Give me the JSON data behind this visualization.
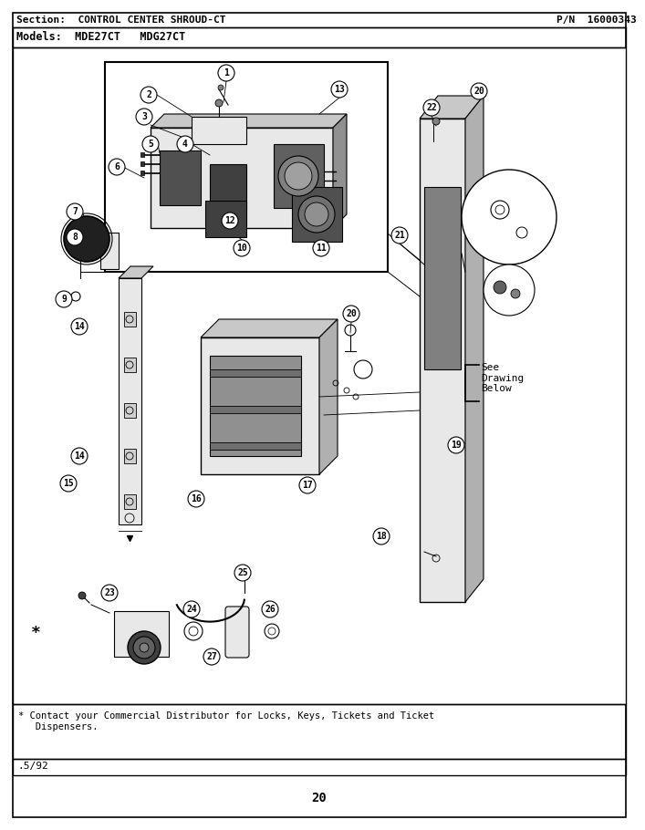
{
  "section_label": "Section:  CONTROL CENTER SHROUD-CT",
  "pn_label": "P/N  16000343",
  "models_label": "Models:  MDE27CT   MDG27CT",
  "footer_note": "* Contact your Commercial Distributor for Locks, Keys, Tickets and Ticket\n   Dispensers.",
  "date_label": ".5/92",
  "page_number": "20",
  "see_drawing_below": "See\nDrawing\nBelow",
  "bg_color": "#ffffff",
  "border_color": "#000000",
  "text_color": "#000000",
  "gray_light": "#e8e8e8",
  "gray_mid": "#c8c8c8",
  "gray_dark": "#909090"
}
